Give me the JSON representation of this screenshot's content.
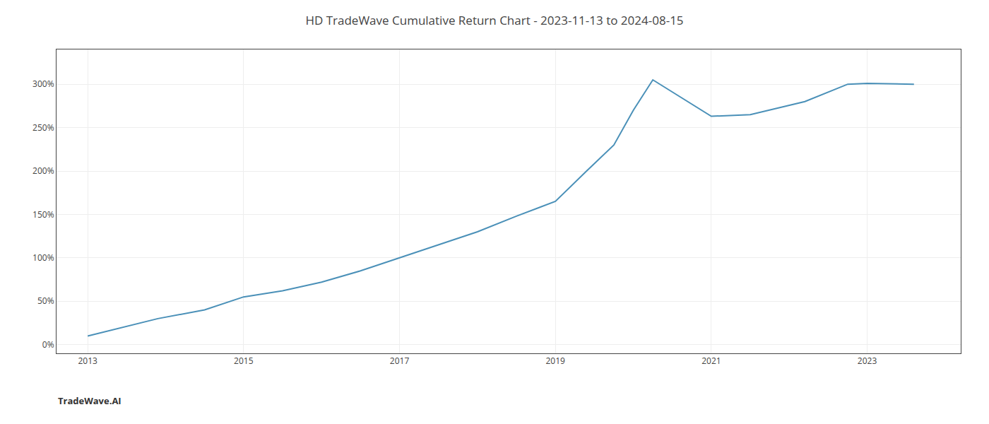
{
  "chart_data": {
    "type": "line",
    "title": "HD TradeWave Cumulative Return Chart - 2023-11-13 to 2024-08-15",
    "annotations": [
      "TradeWave.AI"
    ],
    "x": [
      2013.0,
      2013.9,
      2014.5,
      2015.0,
      2015.5,
      2016.0,
      2016.5,
      2017.0,
      2017.5,
      2018.0,
      2018.5,
      2019.0,
      2019.4,
      2019.75,
      2020.0,
      2020.25,
      2021.0,
      2021.5,
      2022.2,
      2022.75,
      2023.0,
      2023.6
    ],
    "values": [
      10,
      30,
      40,
      55,
      62,
      72,
      85,
      100,
      115,
      130,
      148,
      165,
      200,
      230,
      270,
      305,
      263,
      265,
      280,
      300,
      301,
      300
    ],
    "color": "#4a90b8",
    "xlim": [
      2012.6,
      2024.2
    ],
    "xticks": [
      2013,
      2015,
      2017,
      2019,
      2021,
      2023
    ],
    "ylim": [
      -10,
      340
    ],
    "yticks": [
      {
        "value": 0,
        "label": "0%"
      },
      {
        "value": 50,
        "label": "50%"
      },
      {
        "value": 100,
        "label": "100%"
      },
      {
        "value": 150,
        "label": "150%"
      },
      {
        "value": 200,
        "label": "200%"
      },
      {
        "value": 250,
        "label": "250%"
      },
      {
        "value": 300,
        "label": "300%"
      }
    ],
    "grid": true
  }
}
